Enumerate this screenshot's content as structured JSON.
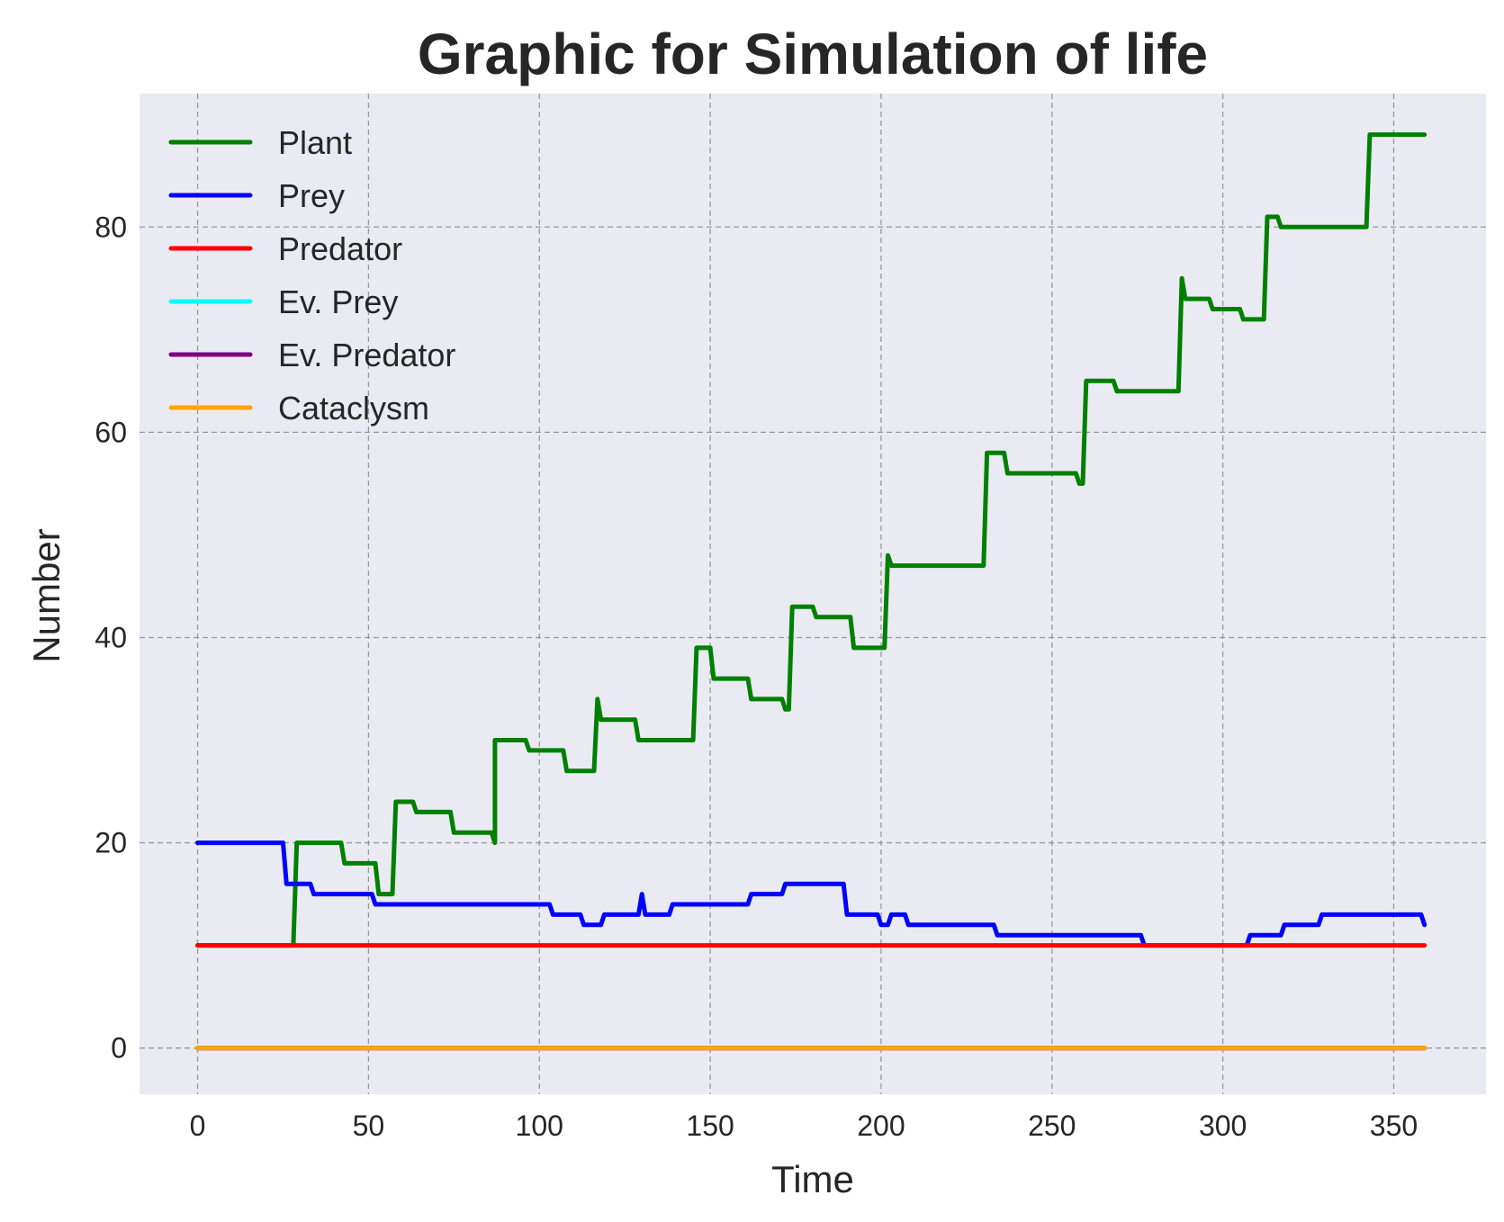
{
  "chart_data": {
    "type": "line",
    "title": "Graphic for Simulation of life",
    "xlabel": "Time",
    "ylabel": "Number",
    "xlim": [
      -17,
      377
    ],
    "ylim": [
      -4.5,
      93
    ],
    "xticks": [
      0,
      50,
      100,
      150,
      200,
      250,
      300,
      350
    ],
    "yticks": [
      0,
      20,
      40,
      60,
      80
    ],
    "xtick_labels": [
      "0",
      "50",
      "100",
      "150",
      "200",
      "250",
      "300",
      "350"
    ],
    "ytick_labels": [
      "0",
      "20",
      "40",
      "60",
      "80"
    ],
    "grid": true,
    "legend_position": "top-left",
    "background": "#eaeaf2",
    "series": [
      {
        "name": "Plant",
        "color": "#008000",
        "points": [
          [
            0,
            10
          ],
          [
            28,
            10
          ],
          [
            29,
            20
          ],
          [
            42,
            20
          ],
          [
            43,
            18
          ],
          [
            52,
            18
          ],
          [
            53,
            15
          ],
          [
            57,
            15
          ],
          [
            58,
            24
          ],
          [
            63,
            24
          ],
          [
            64,
            23
          ],
          [
            74,
            23
          ],
          [
            75,
            21
          ],
          [
            86,
            21
          ],
          [
            87,
            20
          ],
          [
            87,
            30
          ],
          [
            96,
            30
          ],
          [
            97,
            29
          ],
          [
            107,
            29
          ],
          [
            108,
            27
          ],
          [
            116,
            27
          ],
          [
            117,
            34
          ],
          [
            118,
            32
          ],
          [
            128,
            32
          ],
          [
            129,
            30
          ],
          [
            145,
            30
          ],
          [
            146,
            39
          ],
          [
            150,
            39
          ],
          [
            151,
            36
          ],
          [
            161,
            36
          ],
          [
            162,
            34
          ],
          [
            171,
            34
          ],
          [
            172,
            33
          ],
          [
            173,
            33
          ],
          [
            174,
            43
          ],
          [
            180,
            43
          ],
          [
            181,
            42
          ],
          [
            191,
            42
          ],
          [
            192,
            39
          ],
          [
            201,
            39
          ],
          [
            202,
            48
          ],
          [
            203,
            47
          ],
          [
            230,
            47
          ],
          [
            231,
            58
          ],
          [
            236,
            58
          ],
          [
            237,
            56
          ],
          [
            257,
            56
          ],
          [
            258,
            55
          ],
          [
            259,
            55
          ],
          [
            260,
            65
          ],
          [
            268,
            65
          ],
          [
            269,
            64
          ],
          [
            287,
            64
          ],
          [
            288,
            75
          ],
          [
            289,
            73
          ],
          [
            296,
            73
          ],
          [
            297,
            72
          ],
          [
            305,
            72
          ],
          [
            306,
            71
          ],
          [
            312,
            71
          ],
          [
            313,
            81
          ],
          [
            316,
            81
          ],
          [
            317,
            80
          ],
          [
            342,
            80
          ],
          [
            343,
            89
          ],
          [
            359,
            89
          ]
        ]
      },
      {
        "name": "Prey",
        "color": "#0000ff",
        "points": [
          [
            0,
            20
          ],
          [
            25,
            20
          ],
          [
            26,
            16
          ],
          [
            33,
            16
          ],
          [
            34,
            15
          ],
          [
            51,
            15
          ],
          [
            52,
            14
          ],
          [
            103,
            14
          ],
          [
            104,
            13
          ],
          [
            112,
            13
          ],
          [
            113,
            12
          ],
          [
            118,
            12
          ],
          [
            119,
            13
          ],
          [
            129,
            13
          ],
          [
            130,
            15
          ],
          [
            131,
            13
          ],
          [
            138,
            13
          ],
          [
            139,
            14
          ],
          [
            161,
            14
          ],
          [
            162,
            15
          ],
          [
            171,
            15
          ],
          [
            172,
            16
          ],
          [
            189,
            16
          ],
          [
            190,
            13
          ],
          [
            199,
            13
          ],
          [
            200,
            12
          ],
          [
            202,
            12
          ],
          [
            203,
            13
          ],
          [
            207,
            13
          ],
          [
            208,
            12
          ],
          [
            233,
            12
          ],
          [
            234,
            11
          ],
          [
            276,
            11
          ],
          [
            277,
            10
          ],
          [
            307,
            10
          ],
          [
            308,
            11
          ],
          [
            317,
            11
          ],
          [
            318,
            12
          ],
          [
            328,
            12
          ],
          [
            329,
            13
          ],
          [
            358,
            13
          ],
          [
            359,
            12
          ]
        ]
      },
      {
        "name": "Predator",
        "color": "#ff0000",
        "points": [
          [
            0,
            10
          ],
          [
            359,
            10
          ]
        ]
      },
      {
        "name": "Ev. Prey",
        "color": "#00ffff",
        "points": [
          [
            0,
            0
          ],
          [
            359,
            0
          ]
        ]
      },
      {
        "name": "Ev. Predator",
        "color": "#800080",
        "points": [
          [
            0,
            0
          ],
          [
            359,
            0
          ]
        ]
      },
      {
        "name": "Cataclysm",
        "color": "#ffa500",
        "points": [
          [
            0,
            0
          ],
          [
            359,
            0
          ]
        ]
      }
    ]
  }
}
